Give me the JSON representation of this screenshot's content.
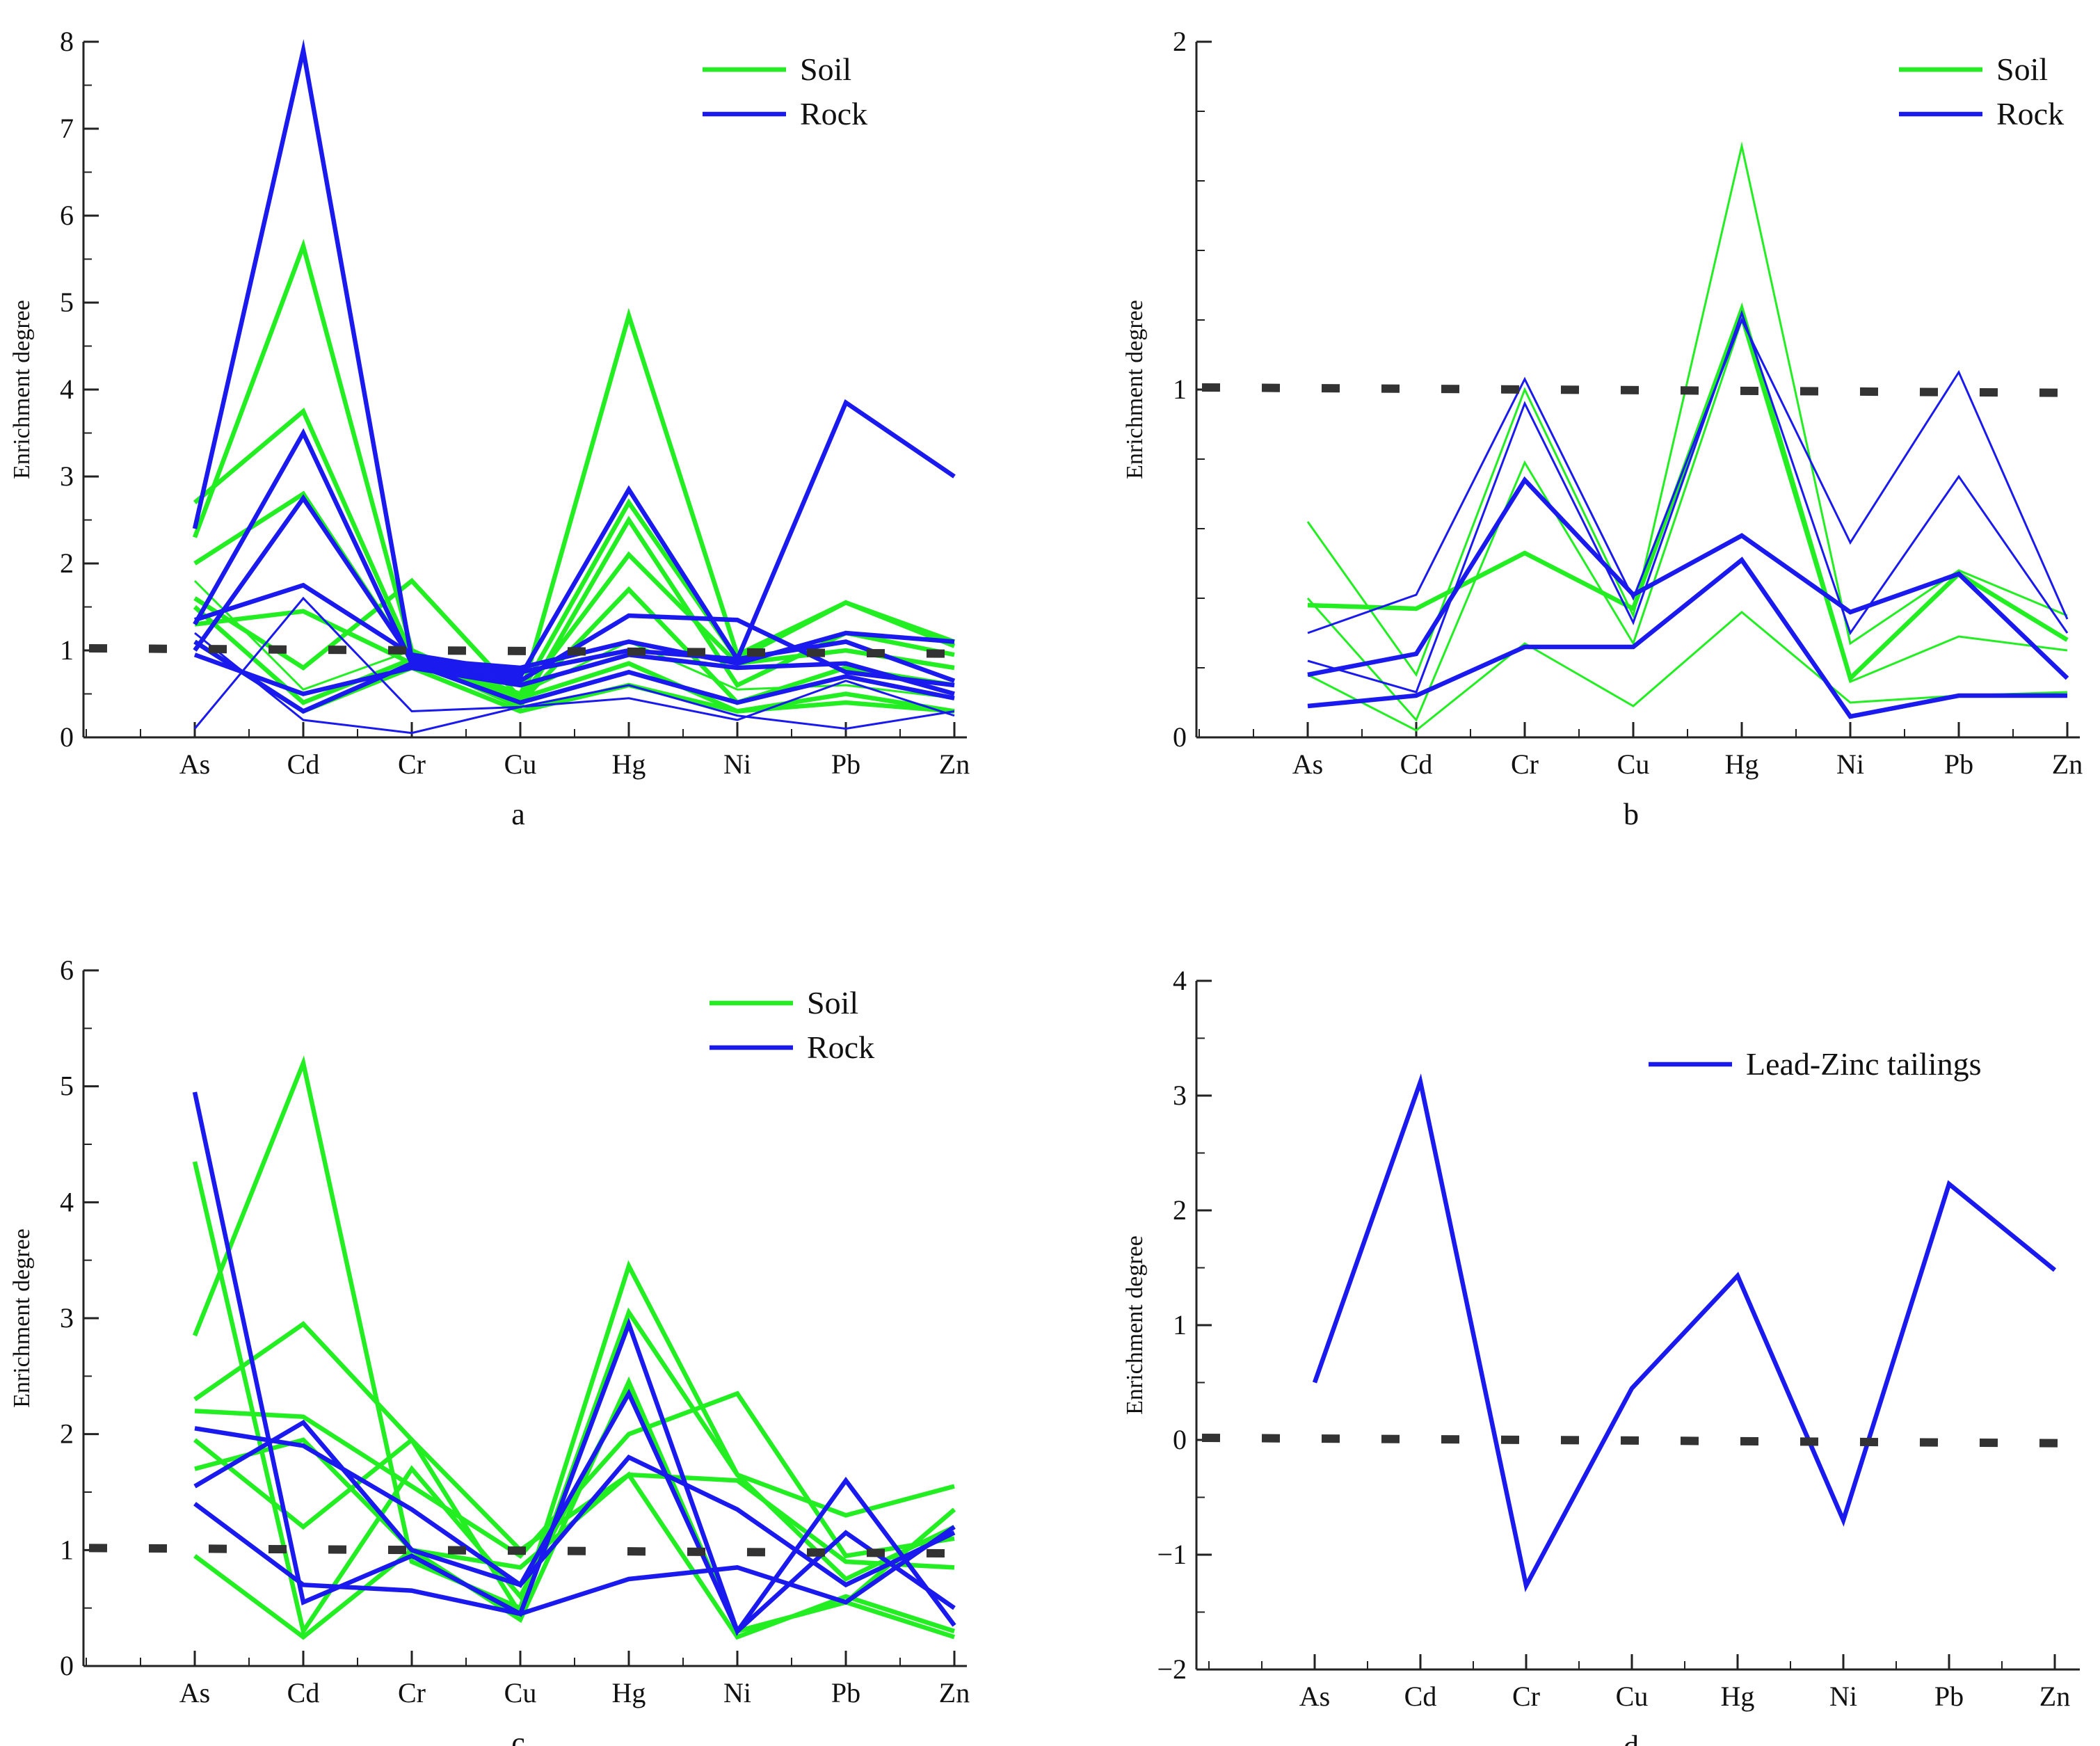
{
  "figure": {
    "colors": {
      "soil": "#22ee22",
      "rock": "#1a1aee",
      "reference": "#333333",
      "axis": "#222222"
    }
  },
  "chart_data": [
    {
      "id": "a",
      "type": "line",
      "panel_label": "a",
      "ylabel": "Enrichment degree",
      "categories": [
        "As",
        "Cd",
        "Cr",
        "Cu",
        "Hg",
        "Ni",
        "Pb",
        "Zn"
      ],
      "ylim": [
        0,
        8
      ],
      "yticks": [
        0,
        1,
        2,
        3,
        4,
        5,
        6,
        7,
        8
      ],
      "reference_line": 1,
      "legend": {
        "position": "top-right",
        "entries": [
          {
            "label": "Soil",
            "color": "soil"
          },
          {
            "label": "Rock",
            "color": "rock"
          }
        ]
      },
      "series": [
        {
          "name": "Soil",
          "color": "soil",
          "width": "thick",
          "values": [
            2.3,
            5.65,
            1.0,
            0.45,
            4.85,
            0.95,
            1.55,
            1.1
          ]
        },
        {
          "name": "Soil",
          "color": "soil",
          "width": "thick",
          "values": [
            2.7,
            3.75,
            0.95,
            0.5,
            2.7,
            0.9,
            1.55,
            1.05
          ]
        },
        {
          "name": "Soil",
          "color": "soil",
          "width": "thick",
          "values": [
            2.0,
            2.8,
            0.9,
            0.35,
            2.5,
            0.6,
            1.2,
            0.95
          ]
        },
        {
          "name": "Soil",
          "color": "soil",
          "width": "thick",
          "values": [
            1.6,
            0.8,
            1.8,
            0.45,
            2.1,
            0.85,
            1.0,
            0.8
          ]
        },
        {
          "name": "Soil",
          "color": "soil",
          "width": "thick",
          "values": [
            1.3,
            1.45,
            0.85,
            0.4,
            1.7,
            0.4,
            0.8,
            0.6
          ]
        },
        {
          "name": "Soil",
          "color": "soil",
          "width": "thin",
          "values": [
            1.8,
            0.55,
            1.0,
            0.5,
            1.1,
            0.55,
            0.6,
            0.45
          ]
        },
        {
          "name": "Soil",
          "color": "soil",
          "width": "thick",
          "values": [
            1.5,
            0.4,
            0.9,
            0.45,
            0.85,
            0.3,
            0.5,
            0.3
          ]
        },
        {
          "name": "Soil",
          "color": "soil",
          "width": "thick",
          "values": [
            1.1,
            0.3,
            0.8,
            0.3,
            0.6,
            0.3,
            0.4,
            0.3
          ]
        },
        {
          "name": "Rock",
          "color": "rock",
          "width": "thick",
          "values": [
            2.4,
            7.9,
            0.9,
            0.7,
            2.85,
            0.9,
            3.85,
            3.0
          ]
        },
        {
          "name": "Rock",
          "color": "rock",
          "width": "thick",
          "values": [
            1.3,
            3.5,
            0.85,
            0.65,
            1.4,
            1.35,
            0.75,
            0.6
          ]
        },
        {
          "name": "Rock",
          "color": "rock",
          "width": "thick",
          "values": [
            1.0,
            2.75,
            0.9,
            0.8,
            1.1,
            0.85,
            1.2,
            1.1
          ]
        },
        {
          "name": "Rock",
          "color": "rock",
          "width": "thick",
          "values": [
            1.35,
            1.75,
            0.95,
            0.75,
            1.0,
            0.9,
            1.1,
            0.65
          ]
        },
        {
          "name": "Rock",
          "color": "rock",
          "width": "thick",
          "values": [
            0.95,
            0.5,
            0.8,
            0.6,
            0.95,
            0.8,
            0.85,
            0.5
          ]
        },
        {
          "name": "Rock",
          "color": "rock",
          "width": "thick",
          "values": [
            1.1,
            0.3,
            0.85,
            0.4,
            0.75,
            0.4,
            0.7,
            0.45
          ]
        },
        {
          "name": "Rock",
          "color": "rock",
          "width": "thin",
          "values": [
            0.1,
            1.6,
            0.3,
            0.35,
            0.6,
            0.25,
            0.1,
            0.3
          ]
        },
        {
          "name": "Rock",
          "color": "rock",
          "width": "thin",
          "values": [
            1.2,
            0.2,
            0.05,
            0.35,
            0.45,
            0.2,
            0.65,
            0.25
          ]
        }
      ]
    },
    {
      "id": "b",
      "type": "line",
      "panel_label": "b",
      "ylabel": "Enrichment degree",
      "categories": [
        "As",
        "Cd",
        "Cr",
        "Cu",
        "Hg",
        "Ni",
        "Pb",
        "Zn"
      ],
      "ylim": [
        0,
        2
      ],
      "yticks": [
        0,
        1,
        2
      ],
      "reference_line": 1,
      "legend": {
        "position": "top-right",
        "entries": [
          {
            "label": "Soil",
            "color": "soil"
          },
          {
            "label": "Rock",
            "color": "rock"
          }
        ]
      },
      "series": [
        {
          "name": "Soil",
          "color": "soil",
          "width": "thin",
          "values": [
            0.62,
            0.18,
            1.0,
            0.35,
            1.7,
            0.27,
            0.48,
            0.35
          ]
        },
        {
          "name": "Soil",
          "color": "soil",
          "width": "thick",
          "values": [
            0.38,
            0.37,
            0.53,
            0.37,
            1.23,
            0.17,
            0.47,
            0.28
          ]
        },
        {
          "name": "Soil",
          "color": "soil",
          "width": "thin",
          "values": [
            0.4,
            0.05,
            0.79,
            0.27,
            1.2,
            0.16,
            0.29,
            0.25
          ]
        },
        {
          "name": "Soil",
          "color": "soil",
          "width": "thin",
          "values": [
            0.18,
            0.02,
            0.27,
            0.09,
            0.36,
            0.1,
            0.12,
            0.13
          ]
        },
        {
          "name": "Rock",
          "color": "rock",
          "width": "thin",
          "values": [
            0.3,
            0.41,
            1.03,
            0.4,
            1.2,
            0.56,
            1.05,
            0.34
          ]
        },
        {
          "name": "Rock",
          "color": "rock",
          "width": "thin",
          "values": [
            0.22,
            0.13,
            0.96,
            0.33,
            1.22,
            0.3,
            0.75,
            0.3
          ]
        },
        {
          "name": "Rock",
          "color": "rock",
          "width": "thick",
          "values": [
            0.18,
            0.24,
            0.74,
            0.41,
            0.58,
            0.36,
            0.47,
            0.17
          ]
        },
        {
          "name": "Rock",
          "color": "rock",
          "width": "thick",
          "values": [
            0.09,
            0.12,
            0.26,
            0.26,
            0.51,
            0.06,
            0.12,
            0.12
          ]
        }
      ]
    },
    {
      "id": "c",
      "type": "line",
      "panel_label": "c",
      "ylabel": "Enrichment degree",
      "categories": [
        "As",
        "Cd",
        "Cr",
        "Cu",
        "Hg",
        "Ni",
        "Pb",
        "Zn"
      ],
      "ylim": [
        0,
        6
      ],
      "yticks": [
        0,
        1,
        2,
        3,
        4,
        5,
        6
      ],
      "reference_line": 1,
      "legend": {
        "position": "top-right",
        "entries": [
          {
            "label": "Soil",
            "color": "soil"
          },
          {
            "label": "Rock",
            "color": "rock"
          }
        ]
      },
      "series": [
        {
          "name": "Soil",
          "color": "soil",
          "width": "thick",
          "values": [
            2.85,
            5.2,
            0.9,
            0.5,
            3.45,
            1.65,
            1.3,
            1.55
          ]
        },
        {
          "name": "Soil",
          "color": "soil",
          "width": "thick",
          "values": [
            4.35,
            0.3,
            1.7,
            0.6,
            2.4,
            0.3,
            0.55,
            1.35
          ]
        },
        {
          "name": "Soil",
          "color": "soil",
          "width": "thick",
          "values": [
            2.3,
            2.95,
            1.95,
            0.45,
            3.05,
            1.65,
            0.75,
            1.2
          ]
        },
        {
          "name": "Soil",
          "color": "soil",
          "width": "thick",
          "values": [
            2.2,
            2.15,
            1.55,
            0.95,
            2.0,
            2.35,
            0.95,
            1.1
          ]
        },
        {
          "name": "Soil",
          "color": "soil",
          "width": "thick",
          "values": [
            1.95,
            1.2,
            1.95,
            1.0,
            1.65,
            1.6,
            0.9,
            0.85
          ]
        },
        {
          "name": "Soil",
          "color": "soil",
          "width": "thick",
          "values": [
            1.7,
            1.95,
            1.0,
            0.85,
            1.65,
            0.25,
            0.6,
            0.3
          ]
        },
        {
          "name": "Soil",
          "color": "soil",
          "width": "thick",
          "values": [
            0.95,
            0.25,
            1.0,
            0.4,
            2.45,
            0.3,
            0.55,
            0.25
          ]
        },
        {
          "name": "Rock",
          "color": "rock",
          "width": "thick",
          "values": [
            4.95,
            0.55,
            0.95,
            0.45,
            2.95,
            0.3,
            1.6,
            0.35
          ]
        },
        {
          "name": "Rock",
          "color": "rock",
          "width": "thick",
          "values": [
            2.05,
            1.9,
            1.35,
            0.7,
            2.35,
            0.3,
            1.15,
            0.5
          ]
        },
        {
          "name": "Rock",
          "color": "rock",
          "width": "thick",
          "values": [
            1.55,
            2.1,
            1.0,
            0.7,
            1.8,
            1.35,
            0.7,
            1.15
          ]
        },
        {
          "name": "Rock",
          "color": "rock",
          "width": "thick",
          "values": [
            1.4,
            0.7,
            0.65,
            0.45,
            0.75,
            0.85,
            0.55,
            1.2
          ]
        }
      ]
    },
    {
      "id": "d",
      "type": "line",
      "panel_label": "d",
      "ylabel": "Enrichment degree",
      "categories": [
        "As",
        "Cd",
        "Cr",
        "Cu",
        "Hg",
        "Ni",
        "Pb",
        "Zn"
      ],
      "ylim": [
        -2,
        4
      ],
      "yticks": [
        -2,
        -1,
        0,
        1,
        2,
        3,
        4
      ],
      "reference_line": 0,
      "legend": {
        "position": "top-right",
        "entries": [
          {
            "label": "Lead-Zinc tailings",
            "color": "rock"
          }
        ]
      },
      "series": [
        {
          "name": "Lead-Zinc tailings",
          "color": "rock",
          "width": "thick",
          "values": [
            0.5,
            3.12,
            -1.27,
            0.45,
            1.43,
            -0.7,
            2.23,
            1.48
          ]
        }
      ]
    }
  ]
}
